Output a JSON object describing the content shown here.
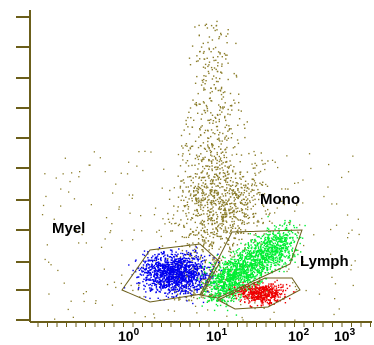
{
  "chart_data": {
    "type": "scatter",
    "title": "",
    "xlabel": "",
    "ylabel": "",
    "x_scale": "log",
    "y_scale": "linear",
    "x_tick_labels": [
      {
        "base": "10",
        "exp": "0",
        "value": 1
      },
      {
        "base": "10",
        "exp": "1",
        "value": 10
      },
      {
        "base": "10",
        "exp": "2",
        "value": 100
      },
      {
        "base": "10",
        "exp": "3",
        "value": 1000
      }
    ],
    "xlim": [
      0.1,
      1000
    ],
    "ylim": [
      0,
      1
    ],
    "grid": false,
    "legend": "none",
    "colors": {
      "background_events": "#8b7d2a",
      "myel": "#0000ee",
      "mono": "#00ee33",
      "lymph": "#ee0000",
      "gate_outline": "#6b5e1a",
      "axis": "#6b5e1a"
    },
    "gates": [
      {
        "name": "Myel",
        "label": "Myel",
        "color": "#0000ee",
        "x_range": [
          0.6,
          6
        ],
        "y_range": [
          0.07,
          0.25
        ]
      },
      {
        "name": "Mono",
        "label": "Mono",
        "color": "#00ee33",
        "x_range": [
          6,
          120
        ],
        "y_range": [
          0.08,
          0.32
        ]
      },
      {
        "name": "Lymph",
        "label": "Lymph",
        "color": "#ee0000",
        "x_range": [
          20,
          150
        ],
        "y_range": [
          0.03,
          0.12
        ]
      }
    ]
  }
}
